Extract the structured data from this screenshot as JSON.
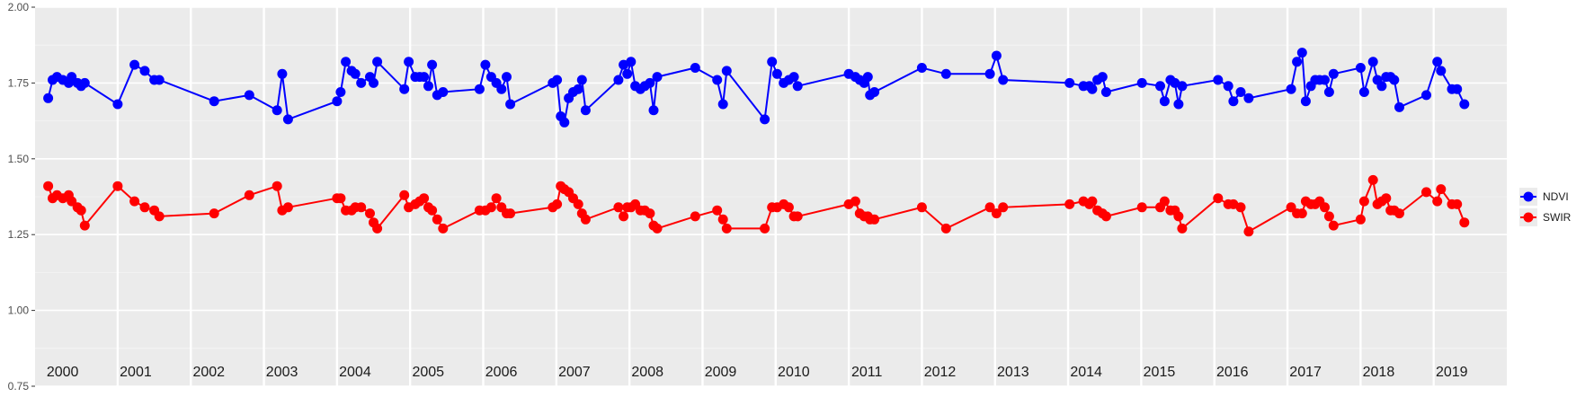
{
  "chart_data": {
    "type": "line",
    "title": "",
    "xlabel": "",
    "ylabel": "",
    "ylim": [
      0.75,
      2.0
    ],
    "y_ticks": [
      "0.75",
      "1.00",
      "1.25",
      "1.50",
      "1.75",
      "2.00"
    ],
    "y_tick_values": [
      0.75,
      1.0,
      1.25,
      1.5,
      1.75,
      2.0
    ],
    "xlim": [
      1999.82,
      2019.95
    ],
    "year_labels": [
      "2000",
      "2001",
      "2002",
      "2003",
      "2004",
      "2005",
      "2006",
      "2007",
      "2008",
      "2009",
      "2010",
      "2011",
      "2012",
      "2013",
      "2014",
      "2015",
      "2016",
      "2017",
      "2018",
      "2019"
    ],
    "grid": true,
    "legend_position": "right",
    "series": [
      {
        "name": "NDVI",
        "color": "#0000ff",
        "points": [
          [
            2000.0,
            1.7
          ],
          [
            2000.06,
            1.76
          ],
          [
            2000.12,
            1.77
          ],
          [
            2000.2,
            1.76
          ],
          [
            2000.28,
            1.75
          ],
          [
            2000.32,
            1.77
          ],
          [
            2000.4,
            1.75
          ],
          [
            2000.45,
            1.74
          ],
          [
            2000.5,
            1.75
          ],
          [
            2000.95,
            1.68
          ],
          [
            2001.18,
            1.81
          ],
          [
            2001.32,
            1.79
          ],
          [
            2001.45,
            1.76
          ],
          [
            2001.52,
            1.76
          ],
          [
            2002.27,
            1.69
          ],
          [
            2002.75,
            1.71
          ],
          [
            2003.13,
            1.66
          ],
          [
            2003.2,
            1.78
          ],
          [
            2003.28,
            1.63
          ],
          [
            2003.95,
            1.69
          ],
          [
            2004.0,
            1.72
          ],
          [
            2004.07,
            1.82
          ],
          [
            2004.15,
            1.79
          ],
          [
            2004.2,
            1.78
          ],
          [
            2004.28,
            1.75
          ],
          [
            2004.4,
            1.77
          ],
          [
            2004.45,
            1.75
          ],
          [
            2004.5,
            1.82
          ],
          [
            2004.87,
            1.73
          ],
          [
            2004.93,
            1.82
          ],
          [
            2005.02,
            1.77
          ],
          [
            2005.08,
            1.77
          ],
          [
            2005.14,
            1.77
          ],
          [
            2005.2,
            1.74
          ],
          [
            2005.25,
            1.81
          ],
          [
            2005.32,
            1.71
          ],
          [
            2005.4,
            1.72
          ],
          [
            2005.9,
            1.73
          ],
          [
            2005.98,
            1.81
          ],
          [
            2006.06,
            1.77
          ],
          [
            2006.13,
            1.75
          ],
          [
            2006.2,
            1.73
          ],
          [
            2006.27,
            1.77
          ],
          [
            2006.32,
            1.68
          ],
          [
            2006.9,
            1.75
          ],
          [
            2006.96,
            1.76
          ],
          [
            2007.01,
            1.64
          ],
          [
            2007.06,
            1.62
          ],
          [
            2007.12,
            1.7
          ],
          [
            2007.18,
            1.72
          ],
          [
            2007.25,
            1.73
          ],
          [
            2007.3,
            1.76
          ],
          [
            2007.35,
            1.66
          ],
          [
            2007.8,
            1.76
          ],
          [
            2007.87,
            1.81
          ],
          [
            2007.92,
            1.78
          ],
          [
            2007.97,
            1.82
          ],
          [
            2008.03,
            1.74
          ],
          [
            2008.1,
            1.73
          ],
          [
            2008.16,
            1.74
          ],
          [
            2008.23,
            1.75
          ],
          [
            2008.28,
            1.66
          ],
          [
            2008.33,
            1.77
          ],
          [
            2008.85,
            1.8
          ],
          [
            2009.15,
            1.76
          ],
          [
            2009.23,
            1.68
          ],
          [
            2009.28,
            1.79
          ],
          [
            2009.8,
            1.63
          ],
          [
            2009.9,
            1.82
          ],
          [
            2009.97,
            1.78
          ],
          [
            2010.06,
            1.75
          ],
          [
            2010.13,
            1.76
          ],
          [
            2010.2,
            1.77
          ],
          [
            2010.25,
            1.74
          ],
          [
            2010.95,
            1.78
          ],
          [
            2011.04,
            1.77
          ],
          [
            2011.1,
            1.76
          ],
          [
            2011.16,
            1.75
          ],
          [
            2011.21,
            1.77
          ],
          [
            2011.24,
            1.71
          ],
          [
            2011.3,
            1.72
          ],
          [
            2011.95,
            1.8
          ],
          [
            2012.28,
            1.78
          ],
          [
            2012.88,
            1.78
          ],
          [
            2012.97,
            1.84
          ],
          [
            2013.06,
            1.76
          ],
          [
            2013.97,
            1.75
          ],
          [
            2014.16,
            1.74
          ],
          [
            2014.24,
            1.74
          ],
          [
            2014.28,
            1.73
          ],
          [
            2014.35,
            1.76
          ],
          [
            2014.42,
            1.77
          ],
          [
            2014.47,
            1.72
          ],
          [
            2014.96,
            1.75
          ],
          [
            2015.21,
            1.74
          ],
          [
            2015.27,
            1.69
          ],
          [
            2015.35,
            1.76
          ],
          [
            2015.41,
            1.75
          ],
          [
            2015.46,
            1.68
          ],
          [
            2015.51,
            1.74
          ],
          [
            2016.0,
            1.76
          ],
          [
            2016.14,
            1.74
          ],
          [
            2016.21,
            1.69
          ],
          [
            2016.31,
            1.72
          ],
          [
            2016.42,
            1.7
          ],
          [
            2017.0,
            1.73
          ],
          [
            2017.08,
            1.82
          ],
          [
            2017.15,
            1.85
          ],
          [
            2017.2,
            1.69
          ],
          [
            2017.27,
            1.74
          ],
          [
            2017.33,
            1.76
          ],
          [
            2017.39,
            1.76
          ],
          [
            2017.46,
            1.76
          ],
          [
            2017.52,
            1.72
          ],
          [
            2017.58,
            1.78
          ],
          [
            2017.95,
            1.8
          ],
          [
            2018.0,
            1.72
          ],
          [
            2018.12,
            1.82
          ],
          [
            2018.18,
            1.76
          ],
          [
            2018.24,
            1.74
          ],
          [
            2018.3,
            1.77
          ],
          [
            2018.36,
            1.77
          ],
          [
            2018.41,
            1.76
          ],
          [
            2018.48,
            1.67
          ],
          [
            2018.85,
            1.71
          ],
          [
            2019.0,
            1.82
          ],
          [
            2019.05,
            1.79
          ],
          [
            2019.2,
            1.73
          ],
          [
            2019.27,
            1.73
          ],
          [
            2019.37,
            1.68
          ]
        ]
      },
      {
        "name": "SWIR",
        "color": "#ff0000",
        "points": [
          [
            2000.0,
            1.41
          ],
          [
            2000.06,
            1.37
          ],
          [
            2000.12,
            1.38
          ],
          [
            2000.2,
            1.37
          ],
          [
            2000.28,
            1.38
          ],
          [
            2000.32,
            1.36
          ],
          [
            2000.4,
            1.34
          ],
          [
            2000.45,
            1.33
          ],
          [
            2000.5,
            1.28
          ],
          [
            2000.95,
            1.41
          ],
          [
            2001.18,
            1.36
          ],
          [
            2001.32,
            1.34
          ],
          [
            2001.45,
            1.33
          ],
          [
            2001.52,
            1.31
          ],
          [
            2002.27,
            1.32
          ],
          [
            2002.75,
            1.38
          ],
          [
            2003.13,
            1.41
          ],
          [
            2003.2,
            1.33
          ],
          [
            2003.28,
            1.34
          ],
          [
            2003.95,
            1.37
          ],
          [
            2004.0,
            1.37
          ],
          [
            2004.07,
            1.33
          ],
          [
            2004.15,
            1.33
          ],
          [
            2004.2,
            1.34
          ],
          [
            2004.28,
            1.34
          ],
          [
            2004.4,
            1.32
          ],
          [
            2004.45,
            1.29
          ],
          [
            2004.5,
            1.27
          ],
          [
            2004.87,
            1.38
          ],
          [
            2004.93,
            1.34
          ],
          [
            2005.02,
            1.35
          ],
          [
            2005.08,
            1.36
          ],
          [
            2005.14,
            1.37
          ],
          [
            2005.2,
            1.34
          ],
          [
            2005.25,
            1.33
          ],
          [
            2005.32,
            1.3
          ],
          [
            2005.4,
            1.27
          ],
          [
            2005.9,
            1.33
          ],
          [
            2005.98,
            1.33
          ],
          [
            2006.06,
            1.34
          ],
          [
            2006.13,
            1.37
          ],
          [
            2006.2,
            1.34
          ],
          [
            2006.27,
            1.32
          ],
          [
            2006.32,
            1.32
          ],
          [
            2006.9,
            1.34
          ],
          [
            2006.96,
            1.35
          ],
          [
            2007.01,
            1.41
          ],
          [
            2007.06,
            1.4
          ],
          [
            2007.12,
            1.39
          ],
          [
            2007.18,
            1.37
          ],
          [
            2007.25,
            1.35
          ],
          [
            2007.3,
            1.32
          ],
          [
            2007.35,
            1.3
          ],
          [
            2007.8,
            1.34
          ],
          [
            2007.87,
            1.31
          ],
          [
            2007.92,
            1.34
          ],
          [
            2007.97,
            1.34
          ],
          [
            2008.03,
            1.35
          ],
          [
            2008.1,
            1.33
          ],
          [
            2008.16,
            1.33
          ],
          [
            2008.23,
            1.32
          ],
          [
            2008.28,
            1.28
          ],
          [
            2008.33,
            1.27
          ],
          [
            2008.85,
            1.31
          ],
          [
            2009.15,
            1.33
          ],
          [
            2009.23,
            1.3
          ],
          [
            2009.28,
            1.27
          ],
          [
            2009.8,
            1.27
          ],
          [
            2009.9,
            1.34
          ],
          [
            2009.97,
            1.34
          ],
          [
            2010.06,
            1.35
          ],
          [
            2010.13,
            1.34
          ],
          [
            2010.2,
            1.31
          ],
          [
            2010.25,
            1.31
          ],
          [
            2010.95,
            1.35
          ],
          [
            2011.04,
            1.36
          ],
          [
            2011.1,
            1.32
          ],
          [
            2011.16,
            1.31
          ],
          [
            2011.21,
            1.31
          ],
          [
            2011.24,
            1.3
          ],
          [
            2011.3,
            1.3
          ],
          [
            2011.95,
            1.34
          ],
          [
            2012.28,
            1.27
          ],
          [
            2012.88,
            1.34
          ],
          [
            2012.97,
            1.32
          ],
          [
            2013.06,
            1.34
          ],
          [
            2013.97,
            1.35
          ],
          [
            2014.16,
            1.36
          ],
          [
            2014.24,
            1.35
          ],
          [
            2014.28,
            1.36
          ],
          [
            2014.35,
            1.33
          ],
          [
            2014.42,
            1.32
          ],
          [
            2014.47,
            1.31
          ],
          [
            2014.96,
            1.34
          ],
          [
            2015.21,
            1.34
          ],
          [
            2015.27,
            1.36
          ],
          [
            2015.35,
            1.33
          ],
          [
            2015.41,
            1.33
          ],
          [
            2015.46,
            1.31
          ],
          [
            2015.51,
            1.27
          ],
          [
            2016.0,
            1.37
          ],
          [
            2016.14,
            1.35
          ],
          [
            2016.21,
            1.35
          ],
          [
            2016.31,
            1.34
          ],
          [
            2016.42,
            1.26
          ],
          [
            2017.0,
            1.34
          ],
          [
            2017.08,
            1.32
          ],
          [
            2017.15,
            1.32
          ],
          [
            2017.2,
            1.36
          ],
          [
            2017.27,
            1.35
          ],
          [
            2017.33,
            1.35
          ],
          [
            2017.39,
            1.36
          ],
          [
            2017.46,
            1.34
          ],
          [
            2017.52,
            1.31
          ],
          [
            2017.58,
            1.28
          ],
          [
            2017.95,
            1.3
          ],
          [
            2018.0,
            1.36
          ],
          [
            2018.12,
            1.43
          ],
          [
            2018.18,
            1.35
          ],
          [
            2018.24,
            1.36
          ],
          [
            2018.3,
            1.37
          ],
          [
            2018.36,
            1.33
          ],
          [
            2018.41,
            1.33
          ],
          [
            2018.48,
            1.32
          ],
          [
            2018.85,
            1.39
          ],
          [
            2019.0,
            1.36
          ],
          [
            2019.05,
            1.4
          ],
          [
            2019.2,
            1.35
          ],
          [
            2019.27,
            1.35
          ],
          [
            2019.37,
            1.29
          ]
        ]
      }
    ]
  }
}
